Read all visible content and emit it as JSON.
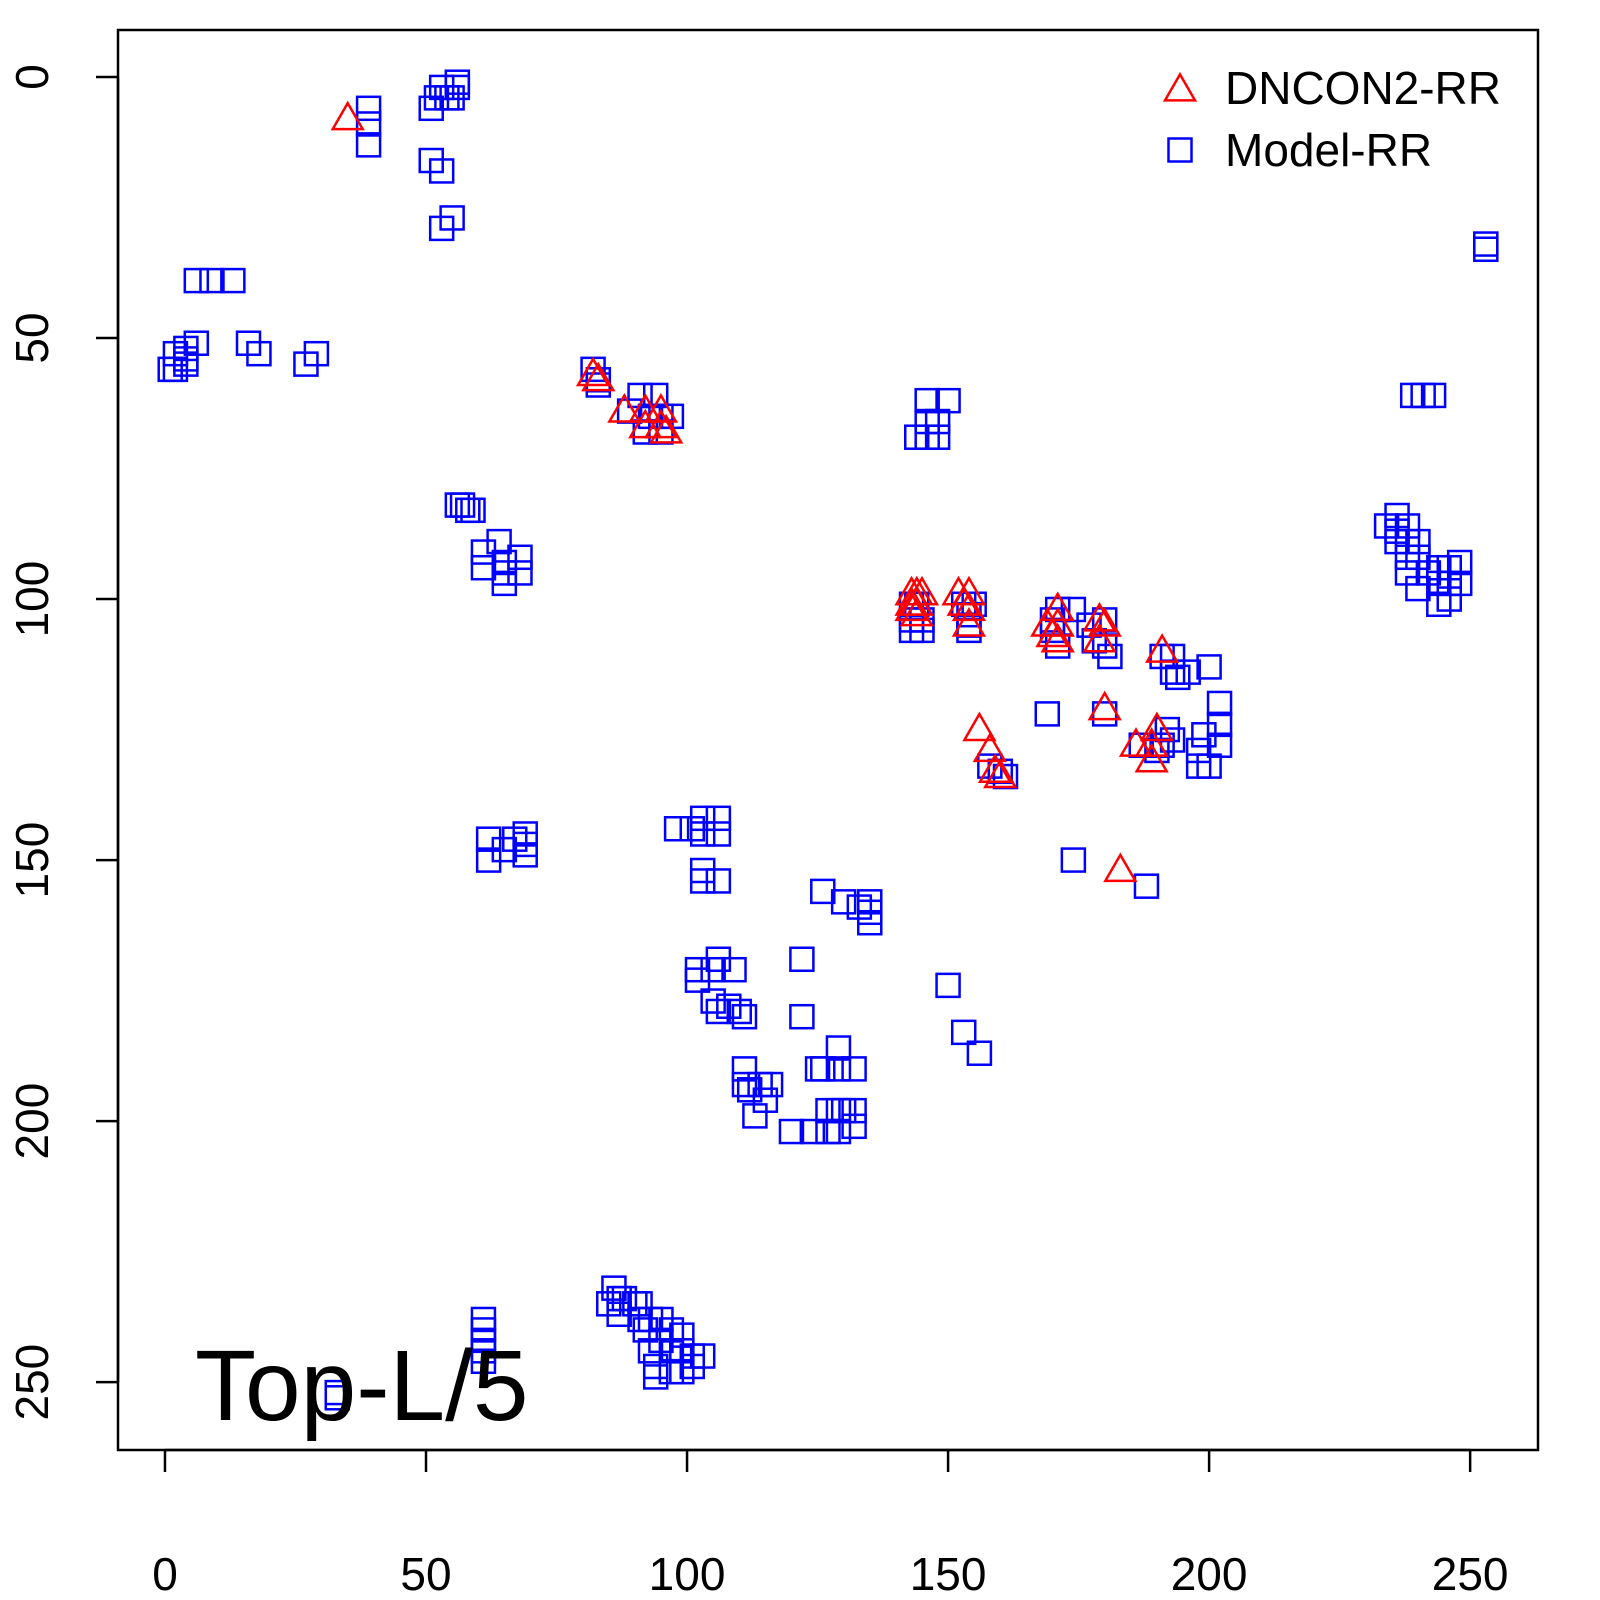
{
  "chart_data": {
    "type": "scatter",
    "annotation": "Top-L/5",
    "xlim": [
      -9,
      263
    ],
    "ylim": [
      -9,
      263
    ],
    "y_reversed": true,
    "x_ticks": [
      "0",
      "50",
      "100",
      "150",
      "200",
      "250"
    ],
    "y_ticks": [
      "0",
      "50",
      "100",
      "150",
      "200",
      "250"
    ],
    "legend_position": "top-right",
    "series": [
      {
        "name": "DNCON2-RR",
        "marker": "triangle",
        "color": "#ff0000",
        "points": [
          [
            35,
            8
          ],
          [
            82,
            57
          ],
          [
            83,
            58
          ],
          [
            88,
            64
          ],
          [
            92,
            64
          ],
          [
            92,
            67
          ],
          [
            95,
            64
          ],
          [
            95,
            67
          ],
          [
            96,
            68
          ],
          [
            143,
            99
          ],
          [
            144,
            99
          ],
          [
            145,
            99
          ],
          [
            143,
            101
          ],
          [
            144,
            101
          ],
          [
            143,
            102
          ],
          [
            144,
            103
          ],
          [
            152,
            99
          ],
          [
            154,
            99
          ],
          [
            153,
            101
          ],
          [
            154,
            102
          ],
          [
            154,
            105
          ],
          [
            169,
            105
          ],
          [
            171,
            102
          ],
          [
            171,
            105
          ],
          [
            170,
            107
          ],
          [
            171,
            108
          ],
          [
            179,
            104
          ],
          [
            180,
            105
          ],
          [
            179,
            108
          ],
          [
            191,
            110
          ],
          [
            180,
            121
          ],
          [
            156,
            125
          ],
          [
            158,
            129
          ],
          [
            159,
            133
          ],
          [
            160,
            134
          ],
          [
            186,
            128
          ],
          [
            189,
            128
          ],
          [
            190,
            125
          ],
          [
            189,
            131
          ],
          [
            183,
            152
          ]
        ]
      },
      {
        "name": "Model-RR",
        "marker": "square",
        "color": "#0000ff",
        "points": [
          [
            39,
            6
          ],
          [
            39,
            9
          ],
          [
            39,
            13
          ],
          [
            51,
            6
          ],
          [
            52,
            4
          ],
          [
            53,
            2
          ],
          [
            54,
            4
          ],
          [
            55,
            4
          ],
          [
            56,
            1
          ],
          [
            56,
            2
          ],
          [
            51,
            16
          ],
          [
            53,
            18
          ],
          [
            55,
            27
          ],
          [
            53,
            29
          ],
          [
            6,
            39
          ],
          [
            9,
            39
          ],
          [
            13,
            39
          ],
          [
            6,
            51
          ],
          [
            4,
            52
          ],
          [
            2,
            53
          ],
          [
            4,
            54
          ],
          [
            4,
            55
          ],
          [
            1,
            56
          ],
          [
            2,
            56
          ],
          [
            16,
            51
          ],
          [
            18,
            53
          ],
          [
            27,
            55
          ],
          [
            29,
            53
          ],
          [
            82,
            56
          ],
          [
            83,
            58
          ],
          [
            83,
            59
          ],
          [
            91,
            61
          ],
          [
            94,
            61
          ],
          [
            89,
            64
          ],
          [
            93,
            65
          ],
          [
            95,
            65
          ],
          [
            97,
            65
          ],
          [
            92,
            68
          ],
          [
            95,
            68
          ],
          [
            146,
            62
          ],
          [
            150,
            62
          ],
          [
            146,
            66
          ],
          [
            148,
            66
          ],
          [
            144,
            69
          ],
          [
            146,
            69
          ],
          [
            148,
            69
          ],
          [
            56,
            82
          ],
          [
            57,
            82
          ],
          [
            58,
            83
          ],
          [
            59,
            83
          ],
          [
            61,
            91
          ],
          [
            61,
            94
          ],
          [
            64,
            89
          ],
          [
            65,
            93
          ],
          [
            65,
            95
          ],
          [
            65,
            97
          ],
          [
            68,
            92
          ],
          [
            68,
            95
          ],
          [
            234,
            86
          ],
          [
            236,
            84
          ],
          [
            236,
            87
          ],
          [
            238,
            86
          ],
          [
            236,
            89
          ],
          [
            238,
            89
          ],
          [
            240,
            89
          ],
          [
            238,
            92
          ],
          [
            240,
            92
          ],
          [
            238,
            95
          ],
          [
            240,
            98
          ],
          [
            242,
            95
          ],
          [
            244,
            94
          ],
          [
            246,
            94
          ],
          [
            248,
            93
          ],
          [
            244,
            97
          ],
          [
            246,
            97
          ],
          [
            248,
            97
          ],
          [
            244,
            101
          ],
          [
            246,
            100
          ],
          [
            239,
            61
          ],
          [
            241,
            61
          ],
          [
            243,
            61
          ],
          [
            253,
            32
          ],
          [
            253,
            33
          ],
          [
            143,
            101
          ],
          [
            144,
            101
          ],
          [
            143,
            104
          ],
          [
            145,
            104
          ],
          [
            143,
            106
          ],
          [
            145,
            106
          ],
          [
            153,
            101
          ],
          [
            155,
            101
          ],
          [
            154,
            103
          ],
          [
            154,
            105
          ],
          [
            154,
            106
          ],
          [
            171,
            102
          ],
          [
            174,
            102
          ],
          [
            170,
            104
          ],
          [
            170,
            106
          ],
          [
            171,
            109
          ],
          [
            177,
            105
          ],
          [
            180,
            104
          ],
          [
            178,
            108
          ],
          [
            180,
            109
          ],
          [
            181,
            111
          ],
          [
            191,
            111
          ],
          [
            193,
            111
          ],
          [
            193,
            114
          ],
          [
            194,
            115
          ],
          [
            196,
            114
          ],
          [
            200,
            113
          ],
          [
            192,
            125
          ],
          [
            193,
            127
          ],
          [
            191,
            128
          ],
          [
            202,
            120
          ],
          [
            202,
            124
          ],
          [
            202,
            128
          ],
          [
            199,
            126
          ],
          [
            198,
            129
          ],
          [
            198,
            132
          ],
          [
            200,
            132
          ],
          [
            187,
            128
          ],
          [
            190,
            129
          ],
          [
            180,
            122
          ],
          [
            169,
            122
          ],
          [
            174,
            150
          ],
          [
            188,
            155
          ],
          [
            158,
            132
          ],
          [
            160,
            133
          ],
          [
            161,
            134
          ],
          [
            62,
            146
          ],
          [
            62,
            150
          ],
          [
            65,
            148
          ],
          [
            67,
            146
          ],
          [
            69,
            145
          ],
          [
            69,
            147
          ],
          [
            69,
            149
          ],
          [
            98,
            144
          ],
          [
            101,
            144
          ],
          [
            103,
            142
          ],
          [
            103,
            145
          ],
          [
            106,
            142
          ],
          [
            106,
            145
          ],
          [
            103,
            152
          ],
          [
            103,
            154
          ],
          [
            106,
            154
          ],
          [
            126,
            156
          ],
          [
            130,
            158
          ],
          [
            133,
            159
          ],
          [
            135,
            158
          ],
          [
            135,
            160
          ],
          [
            135,
            162
          ],
          [
            102,
            171
          ],
          [
            102,
            173
          ],
          [
            105,
            171
          ],
          [
            106,
            169
          ],
          [
            109,
            171
          ],
          [
            105,
            177
          ],
          [
            106,
            179
          ],
          [
            108,
            178
          ],
          [
            110,
            179
          ],
          [
            111,
            180
          ],
          [
            122,
            169
          ],
          [
            122,
            180
          ],
          [
            150,
            174
          ],
          [
            153,
            183
          ],
          [
            156,
            187
          ],
          [
            111,
            190
          ],
          [
            111,
            193
          ],
          [
            112,
            194
          ],
          [
            114,
            193
          ],
          [
            116,
            193
          ],
          [
            115,
            196
          ],
          [
            113,
            199
          ],
          [
            125,
            190
          ],
          [
            126,
            190
          ],
          [
            129,
            186
          ],
          [
            129,
            190
          ],
          [
            132,
            190
          ],
          [
            127,
            198
          ],
          [
            129,
            198
          ],
          [
            130,
            198
          ],
          [
            132,
            198
          ],
          [
            132,
            201
          ],
          [
            120,
            202
          ],
          [
            124,
            202
          ],
          [
            127,
            202
          ],
          [
            129,
            202
          ],
          [
            86,
            232
          ],
          [
            87,
            234
          ],
          [
            87,
            237
          ],
          [
            88,
            234
          ],
          [
            90,
            235
          ],
          [
            91,
            235
          ],
          [
            91,
            238
          ],
          [
            92,
            240
          ],
          [
            93,
            238
          ],
          [
            95,
            238
          ],
          [
            85,
            235
          ],
          [
            93,
            244
          ],
          [
            95,
            242
          ],
          [
            97,
            240
          ],
          [
            99,
            241
          ],
          [
            94,
            247
          ],
          [
            94,
            249
          ],
          [
            97,
            248
          ],
          [
            99,
            248
          ],
          [
            97,
            244
          ],
          [
            99,
            244
          ],
          [
            101,
            245
          ],
          [
            103,
            245
          ],
          [
            101,
            247
          ],
          [
            61,
            238
          ],
          [
            61,
            240
          ],
          [
            61,
            242
          ],
          [
            61,
            244
          ],
          [
            61,
            246
          ],
          [
            33,
            252
          ],
          [
            33,
            253
          ]
        ]
      }
    ]
  }
}
